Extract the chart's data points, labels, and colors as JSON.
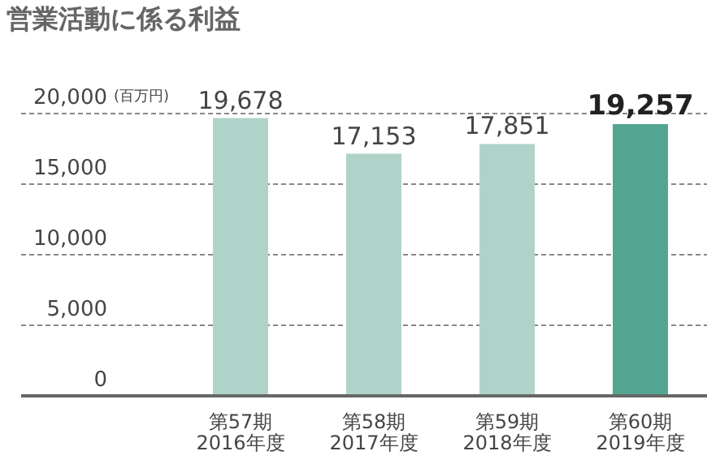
{
  "chart_data": {
    "type": "bar",
    "title": "営業活動に係る利益",
    "ylabel": "(百万円)",
    "categories": [
      "第57期\n2016年度",
      "第58期\n2017年度",
      "第59期\n2018年度",
      "第60期\n2019年度"
    ],
    "values": [
      19678,
      17153,
      17851,
      19257
    ],
    "colors": [
      "#b0d3c9",
      "#b0d3c9",
      "#b0d3c9",
      "#52a591"
    ],
    "ylim": [
      0,
      20000
    ],
    "yticks": [
      0,
      {
        "value": 5000,
        "label": "5,000"
      },
      {
        "value": 10000,
        "label": "10,000"
      },
      {
        "value": 15000,
        "label": "15,000"
      },
      {
        "value": 20000,
        "label": "20,000"
      }
    ],
    "grid": "y",
    "value_labels": [
      "19,678",
      "17,153",
      "17,851",
      "19,257"
    ]
  }
}
